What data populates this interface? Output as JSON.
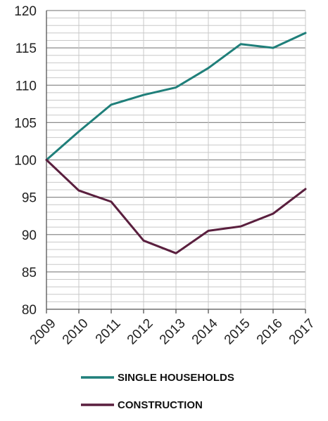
{
  "chart_data": {
    "type": "line",
    "title": "",
    "xlabel": "",
    "ylabel": "",
    "x": [
      "2009",
      "2010",
      "2011",
      "2012",
      "2013",
      "2014",
      "2015",
      "2016",
      "2017"
    ],
    "ylim": [
      80,
      120
    ],
    "y_ticks": [
      "80",
      "85",
      "90",
      "95",
      "100",
      "105",
      "110",
      "115",
      "120"
    ],
    "grid": true,
    "legend": "bottom",
    "series": [
      {
        "name": "SINGLE HOUSEHOLDS",
        "color": "#1f7f7a",
        "values": [
          100,
          103.8,
          107.4,
          108.7,
          109.7,
          112.3,
          115.5,
          115.0,
          117.0
        ]
      },
      {
        "name": "CONSTRUCTION",
        "color": "#5a1f3e",
        "values": [
          100,
          95.9,
          94.4,
          89.2,
          87.5,
          90.5,
          91.1,
          92.8,
          96.1
        ]
      }
    ]
  }
}
